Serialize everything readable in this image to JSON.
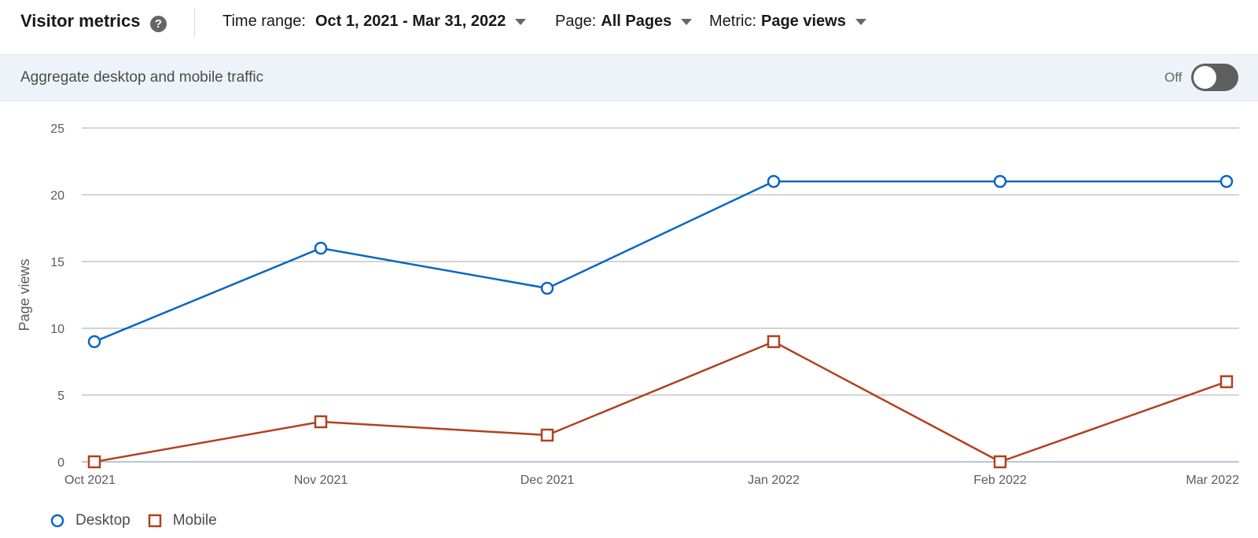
{
  "header": {
    "title": "Visitor metrics",
    "help_glyph": "?",
    "filters": {
      "time_range": {
        "label": "Time range:",
        "value": "Oct 1, 2021 - Mar 31, 2022"
      },
      "page": {
        "label": "Page:",
        "value": "All Pages"
      },
      "metric": {
        "label": "Metric:",
        "value": "Page views"
      }
    }
  },
  "aggregate": {
    "text": "Aggregate desktop and mobile traffic",
    "toggle_label": "Off",
    "toggle_on": false
  },
  "chart_data": {
    "type": "line",
    "ylabel": "Page views",
    "xlabel": "",
    "ylim": [
      0,
      25
    ],
    "yticks": [
      0,
      5,
      10,
      15,
      20,
      25
    ],
    "grid": true,
    "legend_position": "bottom-left",
    "categories": [
      "Oct 2021",
      "Nov 2021",
      "Dec 2021",
      "Jan 2022",
      "Feb 2022",
      "Mar 2022"
    ],
    "series": [
      {
        "name": "Desktop",
        "values": [
          9,
          16,
          13,
          21,
          21,
          21
        ],
        "color": "#0a66c2",
        "marker": "circle"
      },
      {
        "name": "Mobile",
        "values": [
          0,
          3,
          2,
          9,
          0,
          6
        ],
        "color": "#b24020",
        "marker": "square"
      }
    ]
  }
}
